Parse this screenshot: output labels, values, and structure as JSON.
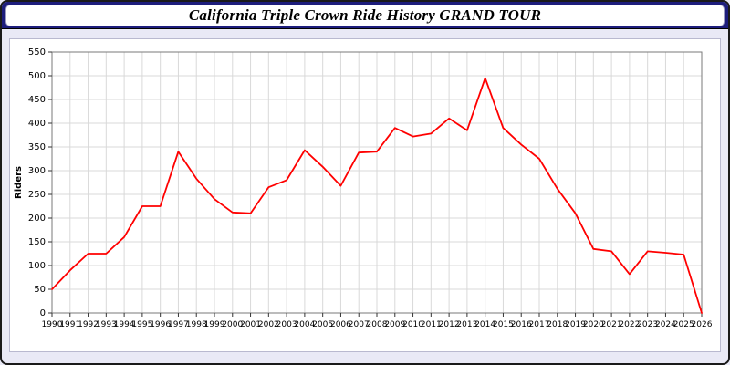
{
  "header": {
    "title": "California Triple Crown Ride History GRAND TOUR"
  },
  "chart_data": {
    "type": "line",
    "title": "California Triple Crown Ride History GRAND TOUR",
    "xlabel": "",
    "ylabel": "Riders",
    "ylim": [
      0,
      550
    ],
    "ytick_step": 50,
    "grid": true,
    "legend": "none",
    "line_color": "#ff0000",
    "categories": [
      1990,
      1991,
      1992,
      1993,
      1994,
      1995,
      1996,
      1997,
      1998,
      1999,
      2000,
      2001,
      2002,
      2003,
      2004,
      2005,
      2006,
      2007,
      2008,
      2009,
      2010,
      2011,
      2012,
      2013,
      2014,
      2015,
      2016,
      2017,
      2018,
      2019,
      2020,
      2021,
      2022,
      2023,
      2024,
      2025,
      2026
    ],
    "values": [
      50,
      90,
      125,
      125,
      160,
      225,
      225,
      340,
      283,
      240,
      212,
      210,
      265,
      280,
      343,
      308,
      268,
      338,
      340,
      390,
      372,
      378,
      410,
      385,
      495,
      390,
      355,
      325,
      262,
      210,
      135,
      130,
      82,
      130,
      127,
      123,
      0
    ]
  }
}
